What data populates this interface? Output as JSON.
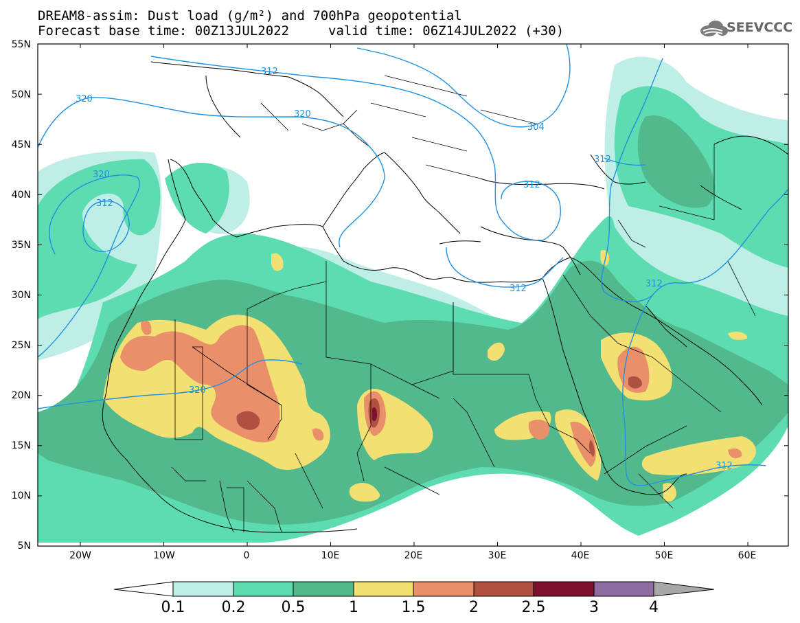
{
  "header": {
    "title_line1": "DREAM8-assim: Dust load (g/m²) and 700hPa geopotential",
    "title_line2": "Forecast base time: 00Z13JUL2022",
    "valid_time": "valid time: 06Z14JUL2022 (+30)",
    "logo_text": "SEEVCCC"
  },
  "map": {
    "lat_labels": [
      "55N",
      "50N",
      "45N",
      "40N",
      "35N",
      "30N",
      "25N",
      "20N",
      "15N",
      "10N",
      "5N"
    ],
    "lon_labels": [
      "20W",
      "10W",
      "0",
      "10E",
      "20E",
      "30E",
      "40E",
      "50E",
      "60E"
    ],
    "contour_labels": [
      "312",
      "320",
      "320",
      "320",
      "312",
      "320",
      "304",
      "312",
      "312",
      "312",
      "312",
      "312"
    ],
    "colors": {
      "c01": "#bfeee6",
      "c02": "#5cdcb0",
      "c05": "#52b98c",
      "c1": "#f3e073",
      "c15": "#e9906a",
      "c2": "#b05040",
      "c25": "#7e1130",
      "c3": "#8e6ba0",
      "c4": "#a8a8a8",
      "contour": "#1e90e0"
    }
  },
  "colorbar": {
    "labels": [
      "0.1",
      "0.2",
      "0.5",
      "1",
      "1.5",
      "2",
      "2.5",
      "3",
      "4"
    ]
  }
}
